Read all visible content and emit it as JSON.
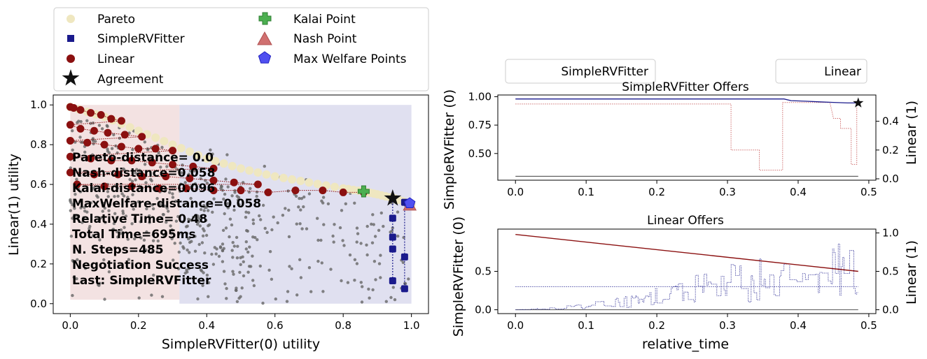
{
  "colors": {
    "pareto": "#efe7c0",
    "simple": "#1a1a8c",
    "linear": "#8b1010",
    "agreement": "#111111",
    "kalai": "#4caf50",
    "nash": "#d07070",
    "welfare": "#5050f0",
    "outcomes": "#666666",
    "region_simple": "#d8d8ec",
    "region_linear": "#f3e2e2"
  },
  "legend_main": {
    "pareto": "Pareto",
    "simple": "SimpleRVFitter",
    "linear": "Linear",
    "agreement": "Agreement",
    "kalai": "Kalai Point",
    "nash": "Nash Point",
    "welfare": "Max Welfare Points"
  },
  "stats": [
    "Pareto-distance=  0.0",
    "Nash-distance=0.058",
    "Kalai-distance=0.096",
    "MaxWelfare-distance=0.058",
    "Relative Time= 0.48",
    "Total Time=695ms",
    "N. Steps=485",
    "Negotiation Success",
    "Last: SimpleRVFitter"
  ],
  "legend_right": {
    "left": "SimpleRVFitter",
    "right": "Linear"
  },
  "chart_data": [
    {
      "type": "scatter",
      "xlabel": "SimpleRVFitter(0) utility",
      "ylabel": "Linear(1) utility",
      "xlim": [
        -0.05,
        1.05
      ],
      "ylim": [
        -0.05,
        1.05
      ],
      "xticks": [
        "0.0",
        "0.2",
        "0.4",
        "0.6",
        "0.8",
        "1.0"
      ],
      "yticks": [
        "0.0",
        "0.2",
        "0.4",
        "0.6",
        "0.8",
        "1.0"
      ],
      "agreement": [
        0.945,
        0.53
      ],
      "kalai": [
        0.86,
        0.565
      ],
      "nash": [
        0.995,
        0.495
      ],
      "max_welfare": [
        0.995,
        0.505
      ],
      "pareto": [
        [
          0.0,
          0.99
        ],
        [
          0.1,
          0.94
        ],
        [
          0.2,
          0.87
        ],
        [
          0.3,
          0.8
        ],
        [
          0.4,
          0.73
        ],
        [
          0.5,
          0.68
        ],
        [
          0.6,
          0.64
        ],
        [
          0.7,
          0.61
        ],
        [
          0.8,
          0.58
        ],
        [
          0.86,
          0.565
        ],
        [
          0.9,
          0.55
        ],
        [
          0.95,
          0.53
        ],
        [
          1.0,
          0.5
        ]
      ],
      "simple_offers": [
        [
          0.945,
          0.43
        ],
        [
          0.945,
          0.335
        ],
        [
          0.945,
          0.275
        ],
        [
          0.945,
          0.115
        ],
        [
          0.98,
          0.51
        ],
        [
          0.98,
          0.235
        ],
        [
          0.98,
          0.075
        ]
      ],
      "linear_offers": [
        [
          0.0,
          0.99
        ],
        [
          0.01,
          0.985
        ],
        [
          0.03,
          0.975
        ],
        [
          0.06,
          0.96
        ],
        [
          0.09,
          0.95
        ],
        [
          0.12,
          0.93
        ],
        [
          0.15,
          0.92
        ],
        [
          0.0,
          0.9
        ],
        [
          0.03,
          0.88
        ],
        [
          0.07,
          0.87
        ],
        [
          0.11,
          0.86
        ],
        [
          0.16,
          0.85
        ],
        [
          0.21,
          0.84
        ],
        [
          0.0,
          0.82
        ],
        [
          0.05,
          0.81
        ],
        [
          0.1,
          0.8
        ],
        [
          0.15,
          0.79
        ],
        [
          0.2,
          0.78
        ],
        [
          0.25,
          0.78
        ],
        [
          0.3,
          0.77
        ],
        [
          0.0,
          0.74
        ],
        [
          0.06,
          0.73
        ],
        [
          0.12,
          0.72
        ],
        [
          0.18,
          0.72
        ],
        [
          0.24,
          0.71
        ],
        [
          0.3,
          0.7
        ],
        [
          0.36,
          0.69
        ],
        [
          0.42,
          0.68
        ],
        [
          0.0,
          0.66
        ],
        [
          0.07,
          0.65
        ],
        [
          0.14,
          0.65
        ],
        [
          0.21,
          0.64
        ],
        [
          0.28,
          0.64
        ],
        [
          0.35,
          0.63
        ],
        [
          0.42,
          0.62
        ],
        [
          0.48,
          0.61
        ],
        [
          0.55,
          0.6
        ],
        [
          0.02,
          0.6
        ],
        [
          0.1,
          0.59
        ],
        [
          0.18,
          0.59
        ],
        [
          0.26,
          0.58
        ],
        [
          0.34,
          0.58
        ],
        [
          0.42,
          0.57
        ],
        [
          0.5,
          0.57
        ],
        [
          0.58,
          0.56
        ],
        [
          0.66,
          0.57
        ],
        [
          0.74,
          0.57
        ],
        [
          0.8,
          0.56
        ],
        [
          0.86,
          0.56
        ]
      ],
      "outcome_count": 500
    },
    {
      "type": "line",
      "title": "SimpleRVFitter Offers",
      "xlabel": "",
      "ylabel": "SimpleRVFitter (0)",
      "ylabel_right": "Linear (1)",
      "xlim": [
        -0.025,
        0.51
      ],
      "ylim": [
        0.265,
        1.015
      ],
      "ylim_right": [
        0.0,
        0.55
      ],
      "xticks": [
        "0.0",
        "0.1",
        "0.2",
        "0.3",
        "0.4",
        "0.5"
      ],
      "yticks": [
        "0.50",
        "0.75",
        "1.00"
      ],
      "yticks_right": [
        "0.0",
        "0.2",
        "0.4"
      ],
      "x": [
        0.0,
        0.38,
        0.39,
        0.41,
        0.43,
        0.45,
        0.47,
        0.485
      ],
      "self_utility": [
        0.98,
        0.98,
        0.965,
        0.96,
        0.955,
        0.95,
        0.945,
        0.945
      ],
      "opponent_utility": [
        [
          0.0,
          0.52
        ],
        [
          0.305,
          0.52
        ],
        [
          0.305,
          0.2
        ],
        [
          0.345,
          0.2
        ],
        [
          0.345,
          0.06
        ],
        [
          0.378,
          0.06
        ],
        [
          0.378,
          0.53
        ],
        [
          0.445,
          0.53
        ],
        [
          0.45,
          0.42
        ],
        [
          0.46,
          0.42
        ],
        [
          0.46,
          0.35
        ],
        [
          0.475,
          0.35
        ],
        [
          0.475,
          0.1
        ],
        [
          0.483,
          0.1
        ],
        [
          0.483,
          0.5
        ]
      ],
      "reserved": 0.3,
      "agreement": [
        0.485,
        0.945
      ]
    },
    {
      "type": "line",
      "title": "Linear Offers",
      "xlabel": "relative_time",
      "ylabel": "SimpleRVFitter (0)",
      "ylabel_right": "Linear (1)",
      "xlim": [
        -0.025,
        0.51
      ],
      "ylim": [
        -0.05,
        1.05
      ],
      "xticks": [
        "0.0",
        "0.1",
        "0.2",
        "0.3",
        "0.4",
        "0.5"
      ],
      "yticks": [
        "0.0",
        "0.5"
      ],
      "yticks_right": [
        "0.0",
        "0.5",
        "1.0"
      ],
      "self_line": [
        [
          0.0,
          0.98
        ],
        [
          0.485,
          0.5
        ]
      ],
      "reserved": 0.3,
      "opponent_envelope": [
        [
          0.0,
          0.0
        ],
        [
          0.05,
          0.03
        ],
        [
          0.1,
          0.08
        ],
        [
          0.15,
          0.18
        ],
        [
          0.2,
          0.3
        ],
        [
          0.25,
          0.45
        ],
        [
          0.3,
          0.6
        ],
        [
          0.35,
          0.72
        ],
        [
          0.4,
          0.8
        ],
        [
          0.45,
          0.9
        ],
        [
          0.485,
          0.97
        ]
      ]
    }
  ]
}
